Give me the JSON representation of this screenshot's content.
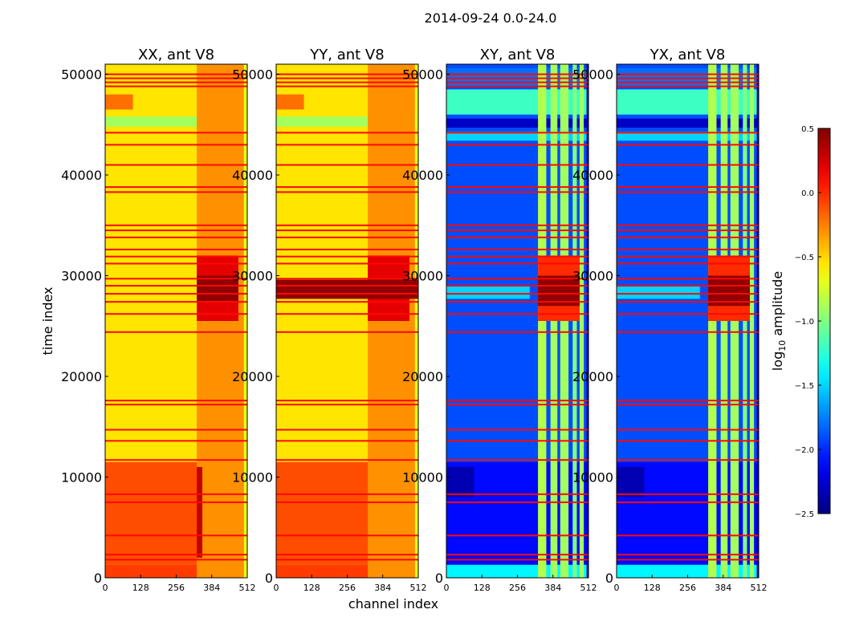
{
  "chart_data": {
    "type": "heatmap",
    "title": "2014-09-24 0.0-24.0",
    "xlabel": "channel index",
    "ylabel": "time index",
    "xlim": [
      0,
      512
    ],
    "ylim": [
      0,
      51000
    ],
    "xticks": [
      "0",
      "128",
      "256",
      "384",
      "512"
    ],
    "yticks": [
      "0",
      "10000",
      "20000",
      "30000",
      "40000",
      "50000"
    ],
    "xtick_values": [
      0,
      128,
      256,
      384,
      512
    ],
    "ytick_values": [
      0,
      10000,
      20000,
      30000,
      40000,
      50000
    ],
    "colorbar": {
      "label_prefix": "log",
      "label_sub": "10",
      "label_suffix": " amplitude",
      "range": [
        -2.5,
        0.5
      ],
      "ticks": [
        "−2.5",
        "−2.0",
        "−1.5",
        "−1.0",
        "−0.5",
        "0.0",
        "0.5"
      ],
      "tick_values": [
        -2.5,
        -2.0,
        -1.5,
        -1.0,
        -0.5,
        0.0,
        0.5
      ],
      "colormap": "jet"
    },
    "flag_value": 0.1,
    "flagged_time_rows": [
      50000,
      49600,
      49200,
      48800,
      44200,
      43000,
      41000,
      38800,
      38300,
      35000,
      34500,
      33800,
      32600,
      31900,
      31200,
      29700,
      29000,
      28200,
      27400,
      26200,
      24400,
      17600,
      17200,
      14700,
      13600,
      11700,
      8300,
      7500,
      4200,
      2300,
      1800
    ],
    "panels": [
      {
        "title": "XX, ant V8",
        "regions": [
          [
            0,
            512,
            0,
            51000,
            -0.55
          ],
          [
            0,
            512,
            0,
            1300,
            -0.05
          ],
          [
            0,
            512,
            1300,
            11500,
            -0.1
          ],
          [
            0,
            100,
            46500,
            48000,
            -0.2
          ],
          [
            0,
            512,
            44800,
            45800,
            -0.9
          ],
          [
            330,
            500,
            0,
            51000,
            -0.3
          ],
          [
            500,
            512,
            0,
            51000,
            -0.7
          ],
          [
            330,
            480,
            25500,
            32000,
            0.2
          ],
          [
            330,
            480,
            27500,
            30000,
            0.45
          ],
          [
            330,
            350,
            2000,
            11000,
            0.3
          ]
        ]
      },
      {
        "title": "YY, ant V8",
        "regions": [
          [
            0,
            512,
            0,
            51000,
            -0.55
          ],
          [
            0,
            512,
            0,
            1300,
            -0.05
          ],
          [
            0,
            512,
            1300,
            11500,
            -0.1
          ],
          [
            0,
            100,
            46500,
            48000,
            -0.2
          ],
          [
            0,
            512,
            44800,
            45800,
            -0.9
          ],
          [
            330,
            500,
            0,
            51000,
            -0.3
          ],
          [
            500,
            512,
            0,
            51000,
            -0.7
          ],
          [
            330,
            480,
            25500,
            32000,
            0.2
          ],
          [
            0,
            512,
            27700,
            29600,
            0.45
          ]
        ]
      },
      {
        "title": "XY, ant V8",
        "regions": [
          [
            0,
            512,
            0,
            51000,
            -1.9
          ],
          [
            0,
            512,
            0,
            1300,
            -1.4
          ],
          [
            0,
            512,
            1300,
            11500,
            -2.1
          ],
          [
            0,
            100,
            8000,
            11000,
            -2.35
          ],
          [
            0,
            512,
            46000,
            48500,
            -1.2
          ],
          [
            0,
            512,
            44700,
            45600,
            -2.3
          ],
          [
            0,
            512,
            43400,
            44300,
            -1.5
          ],
          [
            0,
            512,
            48800,
            50600,
            -1.8
          ],
          [
            330,
            360,
            0,
            51000,
            -0.85
          ],
          [
            375,
            400,
            0,
            51000,
            -0.9
          ],
          [
            410,
            440,
            0,
            51000,
            -0.9
          ],
          [
            455,
            470,
            0,
            51000,
            -1.0
          ],
          [
            480,
            495,
            0,
            51000,
            -0.9
          ],
          [
            330,
            480,
            25500,
            32000,
            0.0
          ],
          [
            330,
            480,
            27000,
            30000,
            0.45
          ],
          [
            0,
            300,
            27700,
            29000,
            -1.5
          ],
          [
            505,
            512,
            0,
            51000,
            -2.4
          ]
        ]
      },
      {
        "title": "YX, ant V8",
        "regions": [
          [
            0,
            512,
            0,
            51000,
            -1.9
          ],
          [
            0,
            512,
            0,
            1300,
            -1.4
          ],
          [
            0,
            512,
            1300,
            11500,
            -2.1
          ],
          [
            0,
            100,
            8000,
            11000,
            -2.35
          ],
          [
            0,
            512,
            46000,
            48500,
            -1.2
          ],
          [
            0,
            512,
            44700,
            45600,
            -2.3
          ],
          [
            0,
            512,
            43400,
            44300,
            -1.5
          ],
          [
            0,
            512,
            48800,
            50600,
            -1.8
          ],
          [
            330,
            360,
            0,
            51000,
            -0.85
          ],
          [
            375,
            400,
            0,
            51000,
            -0.9
          ],
          [
            410,
            440,
            0,
            51000,
            -0.9
          ],
          [
            455,
            470,
            0,
            51000,
            -1.0
          ],
          [
            480,
            495,
            0,
            51000,
            -0.9
          ],
          [
            330,
            480,
            25500,
            32000,
            0.0
          ],
          [
            330,
            480,
            27000,
            30000,
            0.45
          ],
          [
            0,
            300,
            27700,
            29000,
            -1.5
          ],
          [
            505,
            512,
            0,
            51000,
            -2.4
          ]
        ]
      }
    ]
  }
}
